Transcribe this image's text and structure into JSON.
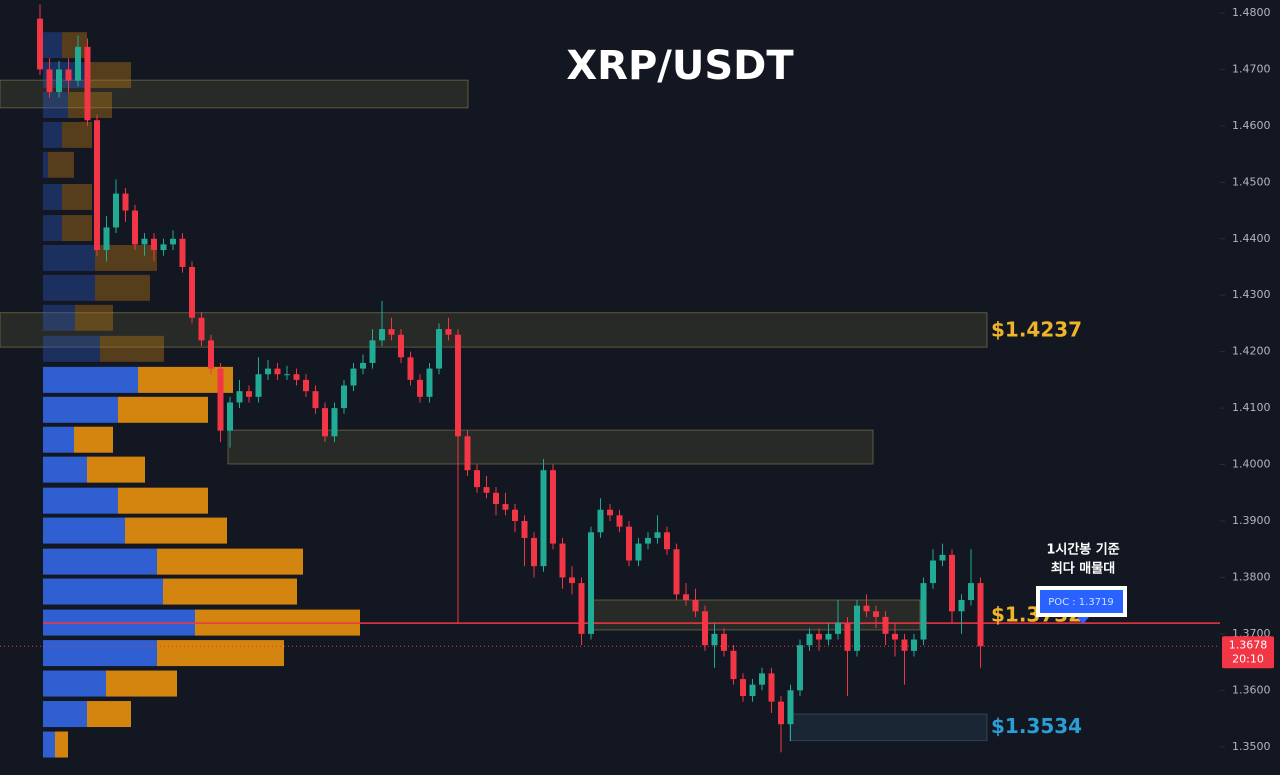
{
  "chart_data": {
    "type": "candlestick",
    "title": "XRP/USDT",
    "ylim": [
      1.345,
      1.4823
    ],
    "yticks": [
      {
        "value": 1.35,
        "label": "1.3500"
      },
      {
        "value": 1.36,
        "label": "1.3600"
      },
      {
        "value": 1.37,
        "label": "1.3700"
      },
      {
        "value": 1.38,
        "label": "1.3800"
      },
      {
        "value": 1.39,
        "label": "1.3900"
      },
      {
        "value": 1.4,
        "label": "1.4000"
      },
      {
        "value": 1.41,
        "label": "1.4100"
      },
      {
        "value": 1.42,
        "label": "1.4200"
      },
      {
        "value": 1.43,
        "label": "1.4300"
      },
      {
        "value": 1.44,
        "label": "1.4400"
      },
      {
        "value": 1.45,
        "label": "1.4500"
      },
      {
        "value": 1.46,
        "label": "1.4600"
      },
      {
        "value": 1.47,
        "label": "1.4700"
      },
      {
        "value": 1.48,
        "label": "1.4800"
      }
    ],
    "up_color": "#22ab94",
    "down_color": "#f23645",
    "candles": [
      [
        1.479,
        1.4815,
        1.469,
        1.47
      ],
      [
        1.47,
        1.472,
        1.465,
        1.466
      ],
      [
        1.466,
        1.4715,
        1.465,
        1.47
      ],
      [
        1.47,
        1.472,
        1.466,
        1.468
      ],
      [
        1.468,
        1.476,
        1.467,
        1.474
      ],
      [
        1.474,
        1.4755,
        1.46,
        1.461
      ],
      [
        1.461,
        1.462,
        1.437,
        1.438
      ],
      [
        1.438,
        1.444,
        1.436,
        1.442
      ],
      [
        1.442,
        1.4505,
        1.441,
        1.448
      ],
      [
        1.448,
        1.449,
        1.443,
        1.445
      ],
      [
        1.445,
        1.446,
        1.438,
        1.439
      ],
      [
        1.439,
        1.441,
        1.437,
        1.44
      ],
      [
        1.44,
        1.441,
        1.436,
        1.438
      ],
      [
        1.438,
        1.44,
        1.437,
        1.439
      ],
      [
        1.439,
        1.4415,
        1.438,
        1.44
      ],
      [
        1.44,
        1.441,
        1.434,
        1.435
      ],
      [
        1.435,
        1.436,
        1.425,
        1.426
      ],
      [
        1.426,
        1.427,
        1.421,
        1.422
      ],
      [
        1.422,
        1.423,
        1.416,
        1.417
      ],
      [
        1.417,
        1.418,
        1.404,
        1.406
      ],
      [
        1.406,
        1.412,
        1.403,
        1.411
      ],
      [
        1.411,
        1.415,
        1.41,
        1.413
      ],
      [
        1.413,
        1.414,
        1.411,
        1.412
      ],
      [
        1.412,
        1.419,
        1.411,
        1.416
      ],
      [
        1.416,
        1.4185,
        1.415,
        1.417
      ],
      [
        1.417,
        1.418,
        1.415,
        1.416
      ],
      [
        1.416,
        1.4175,
        1.415,
        1.416
      ],
      [
        1.416,
        1.417,
        1.414,
        1.415
      ],
      [
        1.415,
        1.416,
        1.412,
        1.413
      ],
      [
        1.413,
        1.414,
        1.409,
        1.41
      ],
      [
        1.41,
        1.411,
        1.404,
        1.405
      ],
      [
        1.405,
        1.411,
        1.404,
        1.41
      ],
      [
        1.41,
        1.415,
        1.409,
        1.414
      ],
      [
        1.414,
        1.418,
        1.413,
        1.417
      ],
      [
        1.417,
        1.4195,
        1.416,
        1.418
      ],
      [
        1.418,
        1.424,
        1.417,
        1.422
      ],
      [
        1.422,
        1.429,
        1.421,
        1.424
      ],
      [
        1.424,
        1.426,
        1.422,
        1.423
      ],
      [
        1.423,
        1.424,
        1.418,
        1.419
      ],
      [
        1.419,
        1.42,
        1.414,
        1.415
      ],
      [
        1.415,
        1.416,
        1.411,
        1.412
      ],
      [
        1.412,
        1.418,
        1.411,
        1.417
      ],
      [
        1.417,
        1.425,
        1.416,
        1.424
      ],
      [
        1.424,
        1.426,
        1.422,
        1.423
      ],
      [
        1.423,
        1.424,
        1.372,
        1.405
      ],
      [
        1.405,
        1.406,
        1.398,
        1.399
      ],
      [
        1.399,
        1.4,
        1.395,
        1.396
      ],
      [
        1.396,
        1.398,
        1.394,
        1.395
      ],
      [
        1.395,
        1.396,
        1.391,
        1.393
      ],
      [
        1.393,
        1.395,
        1.391,
        1.392
      ],
      [
        1.392,
        1.393,
        1.388,
        1.39
      ],
      [
        1.39,
        1.391,
        1.382,
        1.387
      ],
      [
        1.387,
        1.388,
        1.38,
        1.382
      ],
      [
        1.382,
        1.401,
        1.381,
        1.399
      ],
      [
        1.399,
        1.4,
        1.385,
        1.386
      ],
      [
        1.386,
        1.387,
        1.378,
        1.38
      ],
      [
        1.38,
        1.382,
        1.377,
        1.379
      ],
      [
        1.379,
        1.38,
        1.368,
        1.37
      ],
      [
        1.37,
        1.389,
        1.369,
        1.388
      ],
      [
        1.388,
        1.394,
        1.387,
        1.392
      ],
      [
        1.392,
        1.393,
        1.39,
        1.391
      ],
      [
        1.391,
        1.392,
        1.388,
        1.389
      ],
      [
        1.389,
        1.39,
        1.382,
        1.383
      ],
      [
        1.383,
        1.387,
        1.382,
        1.386
      ],
      [
        1.386,
        1.388,
        1.385,
        1.387
      ],
      [
        1.387,
        1.391,
        1.386,
        1.388
      ],
      [
        1.388,
        1.389,
        1.384,
        1.385
      ],
      [
        1.385,
        1.386,
        1.376,
        1.377
      ],
      [
        1.377,
        1.379,
        1.375,
        1.376
      ],
      [
        1.376,
        1.378,
        1.373,
        1.374
      ],
      [
        1.374,
        1.375,
        1.367,
        1.368
      ],
      [
        1.368,
        1.372,
        1.364,
        1.37
      ],
      [
        1.37,
        1.371,
        1.366,
        1.367
      ],
      [
        1.367,
        1.368,
        1.361,
        1.362
      ],
      [
        1.362,
        1.363,
        1.358,
        1.359
      ],
      [
        1.359,
        1.362,
        1.358,
        1.361
      ],
      [
        1.361,
        1.364,
        1.36,
        1.363
      ],
      [
        1.363,
        1.364,
        1.356,
        1.358
      ],
      [
        1.358,
        1.359,
        1.349,
        1.354
      ],
      [
        1.354,
        1.361,
        1.351,
        1.36
      ],
      [
        1.36,
        1.369,
        1.359,
        1.368
      ],
      [
        1.368,
        1.371,
        1.367,
        1.37
      ],
      [
        1.37,
        1.371,
        1.367,
        1.369
      ],
      [
        1.369,
        1.372,
        1.368,
        1.37
      ],
      [
        1.37,
        1.376,
        1.369,
        1.372
      ],
      [
        1.372,
        1.373,
        1.359,
        1.367
      ],
      [
        1.367,
        1.376,
        1.366,
        1.375
      ],
      [
        1.375,
        1.377,
        1.373,
        1.374
      ],
      [
        1.374,
        1.375,
        1.371,
        1.373
      ],
      [
        1.373,
        1.374,
        1.368,
        1.37
      ],
      [
        1.37,
        1.372,
        1.366,
        1.369
      ],
      [
        1.369,
        1.37,
        1.361,
        1.367
      ],
      [
        1.367,
        1.37,
        1.366,
        1.369
      ],
      [
        1.369,
        1.38,
        1.368,
        1.379
      ],
      [
        1.379,
        1.385,
        1.378,
        1.383
      ],
      [
        1.383,
        1.386,
        1.382,
        1.384
      ],
      [
        1.384,
        1.385,
        1.372,
        1.374
      ],
      [
        1.374,
        1.377,
        1.37,
        1.376
      ],
      [
        1.376,
        1.385,
        1.375,
        1.379
      ],
      [
        1.379,
        1.38,
        1.364,
        1.3678
      ]
    ],
    "volume_profile": {
      "buy_color": "#2f5fd0",
      "sell_color": "#d4850f",
      "value_area": [
        1.3504,
        1.415
      ],
      "prices": [
        1.4743,
        1.469,
        1.4637,
        1.4584,
        1.4531,
        1.4474,
        1.4419,
        1.4366,
        1.4313,
        1.426,
        1.4205,
        1.415,
        1.4097,
        1.4044,
        1.3991,
        1.3936,
        1.3883,
        1.3828,
        1.3775,
        1.372,
        1.3666,
        1.3612,
        1.3558,
        1.3504
      ],
      "buy": [
        19,
        42,
        25,
        19,
        5,
        19,
        19,
        52,
        52,
        32,
        57,
        95,
        75,
        31,
        44,
        75,
        82,
        114,
        120,
        152,
        114,
        63,
        44,
        12
      ],
      "sell": [
        25,
        46,
        44,
        30,
        26,
        30,
        30,
        62,
        55,
        38,
        64,
        95,
        90,
        39,
        58,
        90,
        102,
        146,
        134,
        165,
        127,
        71,
        44,
        13
      ]
    },
    "zones": [
      {
        "top": 1.4681,
        "bottom": 1.4632
      },
      {
        "top": 1.4269,
        "bottom": 1.4208
      },
      {
        "top": 1.4061,
        "bottom": 1.4001
      },
      {
        "top": 1.376,
        "bottom": 1.3707
      },
      {
        "top": 1.3558,
        "bottom": 1.3511
      }
    ],
    "level_labels": [
      {
        "value": 1.4237,
        "label": "$1.4237",
        "color": "#f0b429"
      },
      {
        "value": 1.3732,
        "label": "$1.3732",
        "color": "#f0b429"
      },
      {
        "value": 1.3534,
        "label": "$1.3534",
        "color": "#2a9fd6"
      }
    ],
    "poc": {
      "value": 1.3719,
      "label": "POC : 1.3719",
      "note": [
        "1시간봉 기준",
        "최다 매물대"
      ],
      "color": "#f23645"
    },
    "last_price": {
      "value": 1.3678,
      "label": "1.3678",
      "countdown": "20:10"
    }
  }
}
